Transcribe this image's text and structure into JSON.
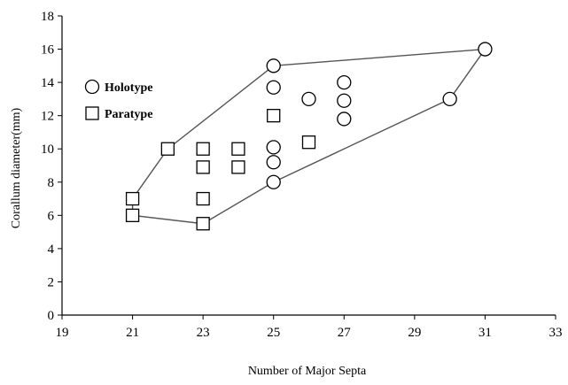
{
  "chart_data": {
    "type": "scatter",
    "xlabel": "Number of Major Septa",
    "ylabel": "Corallum diameter(mm)",
    "xlim": [
      19,
      33
    ],
    "ylim": [
      0,
      18
    ],
    "x_ticks": [
      "19",
      "21",
      "23",
      "25",
      "27",
      "29",
      "31",
      "33"
    ],
    "y_ticks": [
      "0",
      "2",
      "4",
      "6",
      "8",
      "10",
      "12",
      "14",
      "16",
      "18"
    ],
    "x_tick_values": [
      19,
      21,
      23,
      25,
      27,
      29,
      31,
      33
    ],
    "y_tick_values": [
      0,
      2,
      4,
      6,
      8,
      10,
      12,
      14,
      16,
      18
    ],
    "grid": false,
    "legend_position": "top-left",
    "series": [
      {
        "name": "Holotype",
        "marker": "circle",
        "points": [
          {
            "x": 25,
            "y": 15
          },
          {
            "x": 25,
            "y": 13.7
          },
          {
            "x": 25,
            "y": 10.1
          },
          {
            "x": 25,
            "y": 9.2
          },
          {
            "x": 25,
            "y": 8
          },
          {
            "x": 26,
            "y": 13
          },
          {
            "x": 27,
            "y": 14
          },
          {
            "x": 27,
            "y": 12.9
          },
          {
            "x": 27,
            "y": 11.8
          },
          {
            "x": 30,
            "y": 13
          },
          {
            "x": 31,
            "y": 16
          }
        ]
      },
      {
        "name": "Paratype",
        "marker": "square",
        "points": [
          {
            "x": 21,
            "y": 7
          },
          {
            "x": 21,
            "y": 6
          },
          {
            "x": 22,
            "y": 10
          },
          {
            "x": 23,
            "y": 10
          },
          {
            "x": 23,
            "y": 8.9
          },
          {
            "x": 23,
            "y": 7
          },
          {
            "x": 23,
            "y": 5.5
          },
          {
            "x": 24,
            "y": 10
          },
          {
            "x": 24,
            "y": 8.9
          },
          {
            "x": 25,
            "y": 12
          },
          {
            "x": 26,
            "y": 10.4
          }
        ]
      }
    ],
    "hull_polygon": [
      {
        "x": 21,
        "y": 7
      },
      {
        "x": 22,
        "y": 10
      },
      {
        "x": 25,
        "y": 15
      },
      {
        "x": 31,
        "y": 16
      },
      {
        "x": 30,
        "y": 13
      },
      {
        "x": 25,
        "y": 8
      },
      {
        "x": 23,
        "y": 5.5
      },
      {
        "x": 21,
        "y": 6
      }
    ],
    "colors": {
      "line": "#555555",
      "marker_stroke": "#000000",
      "marker_fill": "#ffffff"
    }
  }
}
